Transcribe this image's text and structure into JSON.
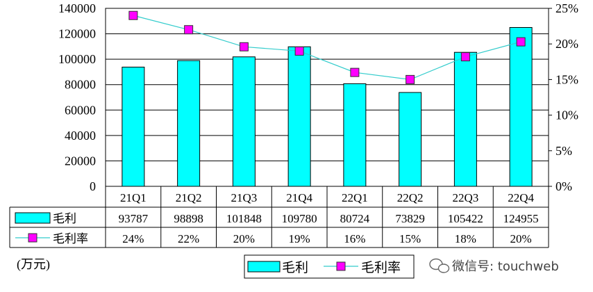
{
  "chart_data": {
    "type": "bar",
    "categories": [
      "21Q1",
      "21Q2",
      "21Q3",
      "21Q4",
      "22Q1",
      "22Q2",
      "22Q3",
      "22Q4"
    ],
    "series": [
      {
        "name": "毛利",
        "type": "bar",
        "axis": "left",
        "values": [
          93787,
          98898,
          101848,
          109780,
          80724,
          73829,
          105422,
          124955
        ],
        "labels": [
          "93787",
          "98898",
          "101848",
          "109780",
          "80724",
          "73829",
          "105422",
          "124955"
        ],
        "color": "#00FFFF"
      },
      {
        "name": "毛利率",
        "type": "line",
        "axis": "right",
        "values": [
          24,
          22,
          19.6,
          19,
          16,
          15,
          18.2,
          20.3
        ],
        "labels": [
          "24%",
          "22%",
          "20%",
          "19%",
          "16%",
          "15%",
          "18%",
          "20%"
        ],
        "color": "#FF00FF",
        "line_color": "#33CCCC"
      }
    ],
    "ylim": [
      0,
      140000
    ],
    "yticks": [
      "0",
      "20000",
      "40000",
      "60000",
      "80000",
      "100000",
      "120000",
      "140000"
    ],
    "y2lim": [
      0,
      25
    ],
    "y2ticks": [
      "0%",
      "5%",
      "10%",
      "15%",
      "20%",
      "25%"
    ],
    "unit_label": "(万元)",
    "grid": true,
    "legend": "bottom-center",
    "data_table": true
  },
  "watermark": {
    "text": "微信号: touchweb",
    "icon": "wechat-icon"
  }
}
